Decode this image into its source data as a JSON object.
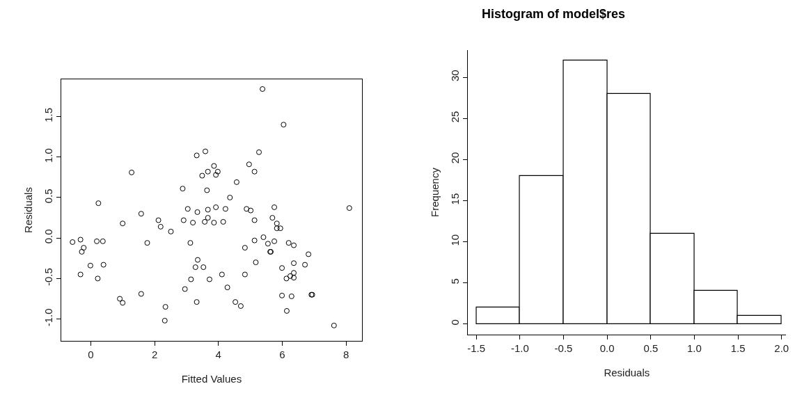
{
  "chart_data": [
    {
      "type": "scatter",
      "xlabel": "Fitted Values",
      "ylabel": "Residuals",
      "marker": "circle",
      "xlim": [
        -0.93,
        8.5
      ],
      "ylim": [
        -1.27,
        1.96
      ],
      "xticks": [
        0,
        2,
        4,
        6,
        8
      ],
      "yticks": [
        {
          "value": -1.0,
          "label": "-1.0"
        },
        {
          "value": -0.5,
          "label": "-0.5"
        },
        {
          "value": 0.0,
          "label": "0.0"
        },
        {
          "value": 0.5,
          "label": "0.5"
        },
        {
          "value": 1.0,
          "label": "1.0"
        },
        {
          "value": 1.5,
          "label": "1.5"
        }
      ],
      "series": [
        {
          "color": "#000000",
          "x": [
            -0.57,
            -0.32,
            -0.22,
            -0.28,
            0.19,
            0.38,
            0.24,
            1.28,
            -0.01,
            0.4,
            -0.32,
            0.22,
            1.0,
            1.58,
            1.77,
            2.12,
            2.19,
            2.51,
            0.91,
            1.0,
            1.58,
            2.34,
            2.32,
            2.88,
            3.04,
            2.91,
            3.2,
            3.34,
            3.32,
            3.59,
            3.67,
            3.49,
            3.64,
            3.67,
            3.67,
            3.57,
            3.12,
            3.35,
            3.28,
            3.53,
            3.14,
            3.72,
            2.95,
            3.32,
            5.38,
            6.04,
            5.27,
            4.96,
            5.13,
            3.86,
            3.98,
            3.92,
            4.57,
            4.36,
            3.92,
            4.22,
            4.88,
            5.01,
            5.75,
            8.1,
            3.86,
            4.15,
            5.13,
            5.69,
            5.83,
            5.83,
            5.94,
            5.13,
            5.41,
            5.55,
            5.75,
            6.2,
            6.36,
            4.83,
            5.64,
            5.62,
            6.82,
            5.17,
            6.36,
            6.71,
            5.99,
            4.11,
            4.83,
            6.25,
            6.36,
            6.13,
            6.36,
            4.28,
            4.53,
            4.7,
            5.99,
            6.29,
            6.91,
            6.94,
            6.14,
            7.62
          ],
          "values": [
            -0.05,
            -0.02,
            -0.12,
            -0.17,
            -0.04,
            -0.04,
            0.43,
            0.81,
            -0.34,
            -0.33,
            -0.45,
            -0.5,
            0.18,
            0.3,
            -0.06,
            0.22,
            0.14,
            0.08,
            -0.75,
            -0.8,
            -0.69,
            -0.85,
            -1.02,
            0.61,
            0.36,
            0.22,
            0.19,
            0.32,
            1.02,
            1.07,
            0.82,
            0.77,
            0.59,
            0.35,
            0.25,
            0.2,
            -0.06,
            -0.27,
            -0.36,
            -0.36,
            -0.51,
            -0.51,
            -0.63,
            -0.79,
            1.84,
            1.4,
            1.06,
            0.91,
            0.82,
            0.89,
            0.82,
            0.78,
            0.69,
            0.5,
            0.38,
            0.36,
            0.36,
            0.34,
            0.38,
            0.37,
            0.19,
            0.2,
            0.22,
            0.25,
            0.18,
            0.12,
            0.12,
            -0.03,
            0.01,
            -0.07,
            -0.04,
            -0.06,
            -0.09,
            -0.12,
            -0.17,
            -0.17,
            -0.2,
            -0.3,
            -0.31,
            -0.33,
            -0.37,
            -0.45,
            -0.45,
            -0.47,
            -0.43,
            -0.5,
            -0.49,
            -0.61,
            -0.79,
            -0.84,
            -0.71,
            -0.72,
            -0.7,
            -0.7,
            -0.9,
            -1.08
          ]
        }
      ]
    },
    {
      "type": "histogram",
      "title": "Histogram of model$res",
      "xlabel": "Residuals",
      "ylabel": "Frequency",
      "bins": [
        -1.5,
        -1.0,
        -0.5,
        0.0,
        0.5,
        1.0,
        1.5,
        2.0
      ],
      "values": [
        2,
        18,
        32,
        28,
        11,
        4,
        1
      ],
      "color": "#ffffff",
      "xlim": [
        -1.6,
        2.05
      ],
      "ylim": [
        -1.3,
        33.3
      ],
      "xticks": [
        {
          "value": -1.5,
          "label": "-1.5"
        },
        {
          "value": -1.0,
          "label": "-1.0"
        },
        {
          "value": -0.5,
          "label": "-0.5"
        },
        {
          "value": 0.0,
          "label": "0.0"
        },
        {
          "value": 0.5,
          "label": "0.5"
        },
        {
          "value": 1.0,
          "label": "1.0"
        },
        {
          "value": 1.5,
          "label": "1.5"
        },
        {
          "value": 2.0,
          "label": "2.0"
        }
      ],
      "yticks": [
        0,
        5,
        10,
        15,
        20,
        25,
        30
      ]
    }
  ]
}
